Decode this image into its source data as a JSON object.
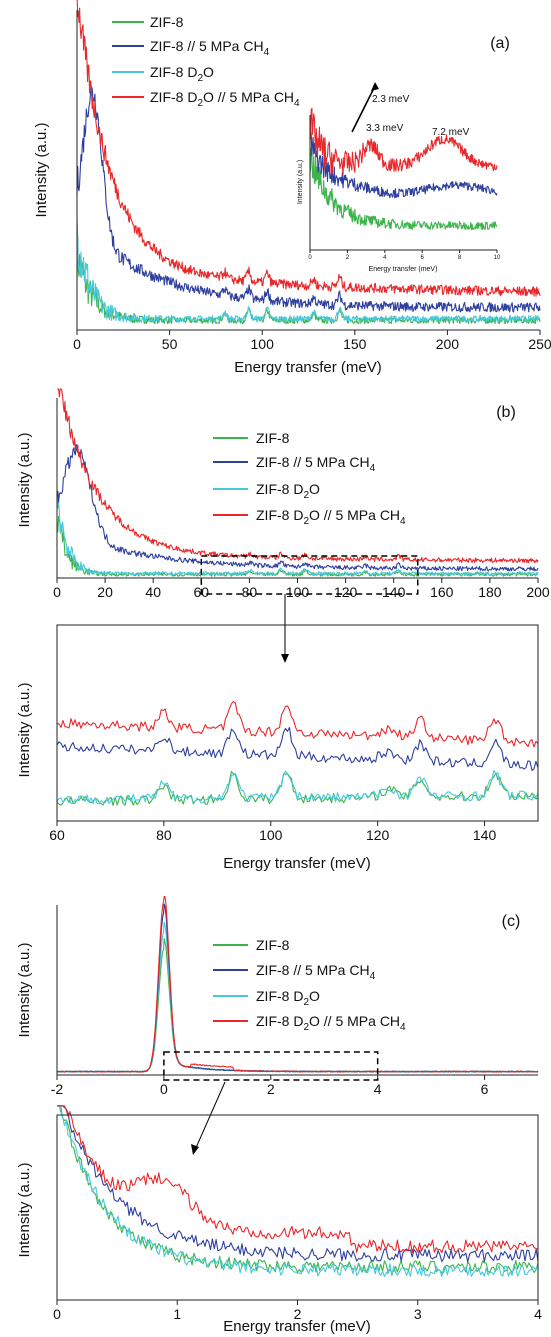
{
  "colors": {
    "ZIF-8": "#3cb44b",
    "ZIF-8 // 5 MPa CH4": "#2e3f9e",
    "ZIF-8 D2O": "#46c8dc",
    "ZIF-8 D2O // 5 MPa CH4": "#e8282b"
  },
  "chart_data": [
    {
      "panel": "a",
      "type": "line",
      "panel_label": "(a)",
      "xlabel": "Energy transfer (meV)",
      "ylabel": "Intensity (a.u.)",
      "xlim": [
        0,
        250
      ],
      "xticks": [
        "0",
        "50",
        "100",
        "150",
        "200",
        "250"
      ],
      "legend": [
        "ZIF-8",
        "ZIF-8 // 5 MPa CH",
        "ZIF-8 D",
        "ZIF-8 D"
      ],
      "legend_position": "top-left",
      "series": [
        {
          "name": "ZIF-8",
          "x": [
            2,
            5,
            10,
            20,
            35,
            50,
            80,
            100,
            140,
            200,
            250
          ],
          "y": [
            0.2,
            0.12,
            0.08,
            0.05,
            0.035,
            0.03,
            0.03,
            0.025,
            0.02,
            0.02,
            0.02
          ]
        },
        {
          "name": "ZIF-8 // 5 MPa CH4",
          "x": [
            2,
            5,
            10,
            20,
            35,
            50,
            80,
            100,
            140,
            200,
            250
          ],
          "y": [
            0.45,
            0.52,
            0.5,
            0.38,
            0.25,
            0.19,
            0.14,
            0.13,
            0.1,
            0.08,
            0.08
          ]
        },
        {
          "name": "ZIF-8 D2O",
          "x": [
            2,
            5,
            10,
            20,
            35,
            50,
            80,
            100,
            140,
            200,
            250
          ],
          "y": [
            0.28,
            0.2,
            0.13,
            0.08,
            0.05,
            0.04,
            0.03,
            0.03,
            0.025,
            0.025,
            0.025
          ]
        },
        {
          "name": "ZIF-8 D2O // 5 MPa CH4",
          "x": [
            2,
            5,
            10,
            20,
            35,
            50,
            80,
            100,
            140,
            200,
            250
          ],
          "y": [
            0.95,
            0.82,
            0.68,
            0.5,
            0.33,
            0.25,
            0.2,
            0.18,
            0.14,
            0.12,
            0.11
          ]
        }
      ],
      "inset": {
        "xlabel": "Energy transfer (meV)",
        "ylabel": "Intensity (a.u.)",
        "xlim": [
          0,
          10
        ],
        "xticks": [
          "0",
          "2",
          "4",
          "6",
          "8",
          "10"
        ],
        "annotations": [
          "2.3 meV",
          "3.3 meV",
          "7.2 meV"
        ]
      }
    },
    {
      "panel": "b-top",
      "type": "line",
      "panel_label": "(b)",
      "ylabel": "Intensity (a.u.)",
      "xlim": [
        0,
        200
      ],
      "xticks": [
        "0",
        "20",
        "40",
        "60",
        "80",
        "100",
        "120",
        "140",
        "160",
        "180",
        "200"
      ],
      "legend": [
        "ZIF-8",
        "ZIF-8 // 5 MPa CH",
        "ZIF-8 D",
        "ZIF-8 D"
      ],
      "legend_position": "top-right",
      "zoom_box": [
        60,
        150
      ]
    },
    {
      "panel": "b-bottom",
      "type": "line",
      "xlabel": "Energy transfer (meV)",
      "ylabel": "Intensity (a.u.)",
      "xlim": [
        60,
        150
      ],
      "xticks": [
        "60",
        "80",
        "100",
        "120",
        "140"
      ]
    },
    {
      "panel": "c-top",
      "type": "line",
      "panel_label": "(c)",
      "ylabel": "Intensity (a.u.)",
      "xlim": [
        -2,
        7
      ],
      "xticks": [
        "-2",
        "0",
        "2",
        "4",
        "6"
      ],
      "legend": [
        "ZIF-8",
        "ZIF-8 // 5 MPa CH",
        "ZIF-8 D",
        "ZIF-8 D"
      ],
      "legend_position": "top-right",
      "zoom_box": [
        0,
        4
      ],
      "peak_center": 0
    },
    {
      "panel": "c-bottom",
      "type": "line",
      "xlabel": "Energy transfer (meV)",
      "ylabel": "Intensity (a.u.)",
      "xlim": [
        0,
        4
      ],
      "xticks": [
        "0",
        "1",
        "2",
        "3",
        "4"
      ]
    }
  ],
  "subscripts": {
    "four": "4",
    "two": "2"
  },
  "legend_suffix": {
    "o": "O",
    "o_ch": "O // 5 MPa CH"
  }
}
